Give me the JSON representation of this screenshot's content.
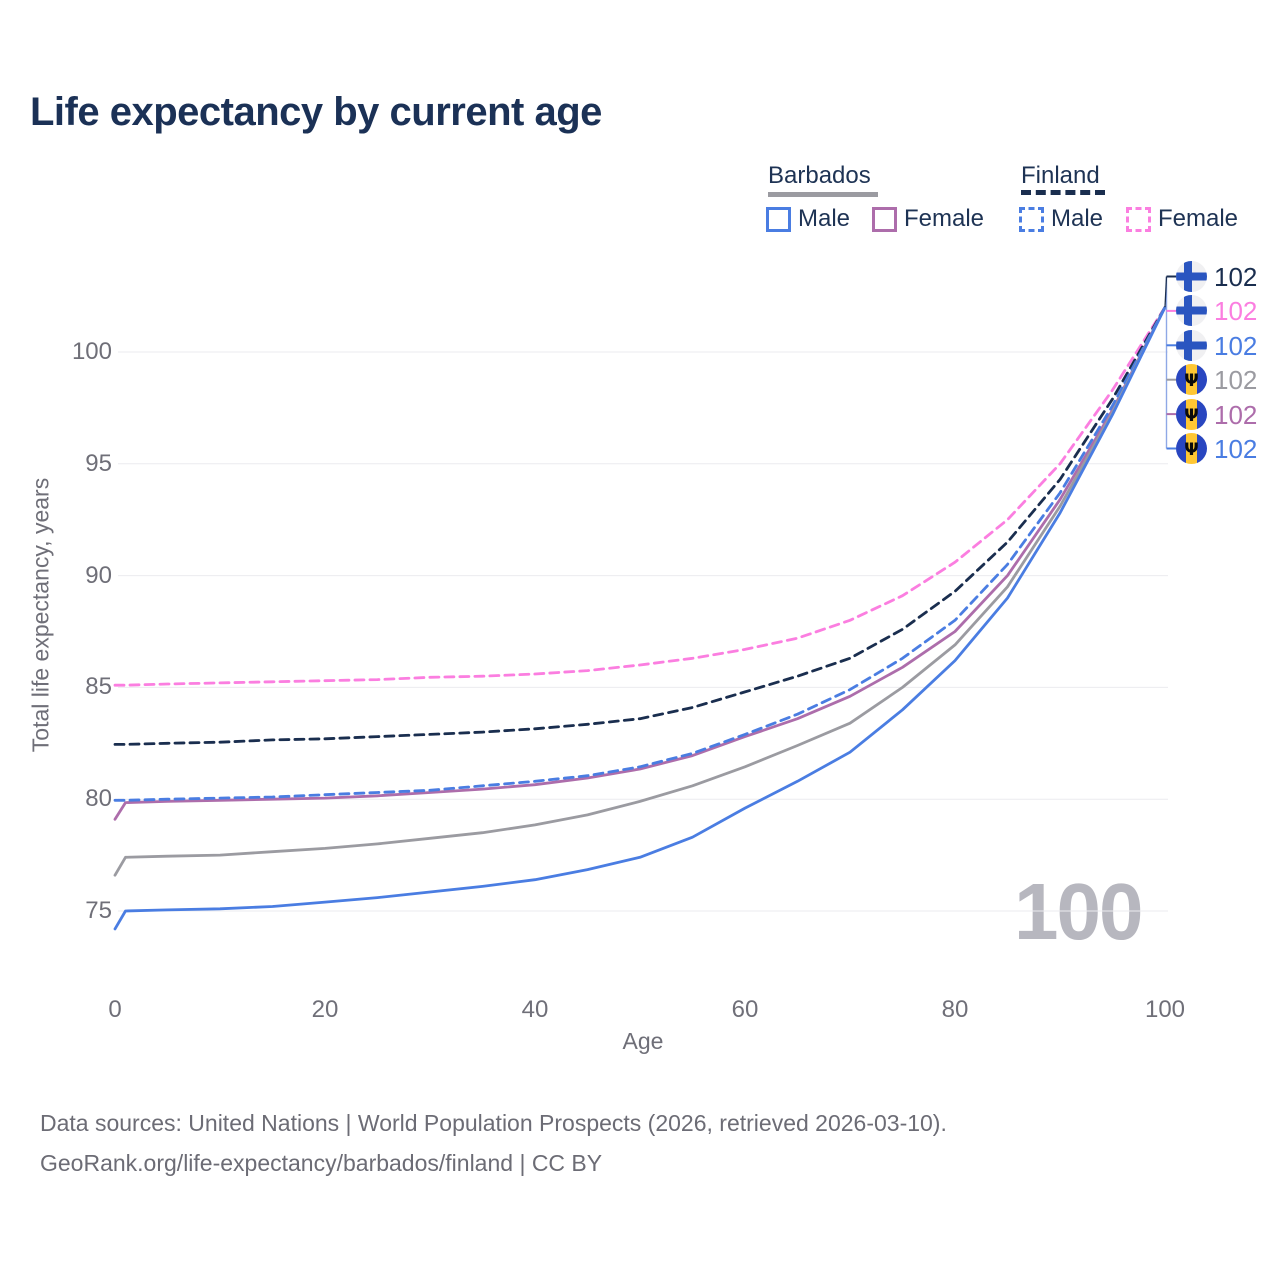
{
  "title": "Life expectancy by current age",
  "legend": {
    "groups": [
      {
        "label": "Barbados",
        "underline_style": "solid",
        "underline_color": "#9b9ba1",
        "items": [
          {
            "label": "Male",
            "color": "#4a7de2",
            "dash": false
          },
          {
            "label": "Female",
            "color": "#ad6dab",
            "dash": false
          }
        ]
      },
      {
        "label": "Finland",
        "underline_style": "dashed",
        "underline_color": "#1a2e4f",
        "items": [
          {
            "label": "Male",
            "color": "#4a7de2",
            "dash": true
          },
          {
            "label": "Female",
            "color": "#fb7ee0",
            "dash": true
          }
        ]
      }
    ]
  },
  "chart_data": {
    "type": "line",
    "title": "Life expectancy by current age",
    "xlabel": "Age",
    "ylabel": "Total life expectancy, years",
    "xlim": [
      0,
      100
    ],
    "ylim": [
      73.5,
      102.5
    ],
    "xticks": [
      0,
      20,
      40,
      60,
      80,
      100
    ],
    "yticks": [
      75,
      80,
      85,
      90,
      95,
      100
    ],
    "grid": "horizontal-only",
    "x": [
      0,
      1,
      5,
      10,
      15,
      20,
      25,
      30,
      35,
      40,
      45,
      50,
      55,
      60,
      65,
      70,
      75,
      80,
      85,
      90,
      95,
      100
    ],
    "series": [
      {
        "name": "Finland Female",
        "country": "Finland",
        "sex": "Female",
        "color": "#fb7ee0",
        "dash": true,
        "values": [
          85.1,
          85.1,
          85.15,
          85.2,
          85.25,
          85.3,
          85.35,
          85.45,
          85.5,
          85.6,
          85.75,
          86.0,
          86.3,
          86.7,
          87.2,
          88.0,
          89.1,
          90.6,
          92.5,
          95.0,
          98.3,
          102
        ]
      },
      {
        "name": "Finland Both sexes",
        "country": "Finland",
        "sex": "Both",
        "color": "#1a2e4f",
        "dash": true,
        "values": [
          82.45,
          82.45,
          82.5,
          82.55,
          82.65,
          82.7,
          82.8,
          82.9,
          83.0,
          83.15,
          83.35,
          83.6,
          84.1,
          84.8,
          85.5,
          86.3,
          87.6,
          89.3,
          91.5,
          94.3,
          97.9,
          102
        ]
      },
      {
        "name": "Barbados Female",
        "country": "Barbados",
        "sex": "Female",
        "color": "#ad6dab",
        "dash": false,
        "values": [
          79.1,
          79.85,
          79.9,
          79.95,
          80.0,
          80.05,
          80.15,
          80.3,
          80.45,
          80.65,
          80.95,
          81.35,
          81.95,
          82.8,
          83.6,
          84.6,
          85.9,
          87.5,
          90.0,
          93.4,
          97.4,
          102
        ]
      },
      {
        "name": "Finland Male",
        "country": "Finland",
        "sex": "Male",
        "color": "#4a7de2",
        "dash": true,
        "values": [
          79.95,
          79.95,
          80.0,
          80.05,
          80.1,
          80.2,
          80.3,
          80.4,
          80.6,
          80.8,
          81.05,
          81.45,
          82.05,
          82.9,
          83.8,
          84.9,
          86.3,
          88.0,
          90.5,
          93.7,
          97.6,
          102
        ]
      },
      {
        "name": "Barbados Both sexes",
        "country": "Barbados",
        "sex": "Both",
        "color": "#9b9ba1",
        "dash": false,
        "values": [
          76.6,
          77.4,
          77.45,
          77.5,
          77.65,
          77.8,
          78.0,
          78.25,
          78.5,
          78.85,
          79.3,
          79.9,
          80.6,
          81.45,
          82.4,
          83.4,
          85.0,
          86.9,
          89.5,
          93.1,
          97.3,
          102
        ]
      },
      {
        "name": "Barbados Male",
        "country": "Barbados",
        "sex": "Male",
        "color": "#4a7de2",
        "dash": false,
        "values": [
          74.2,
          75.0,
          75.05,
          75.1,
          75.2,
          75.4,
          75.6,
          75.85,
          76.1,
          76.4,
          76.85,
          77.4,
          78.3,
          79.6,
          80.8,
          82.1,
          84.0,
          86.2,
          89.0,
          92.8,
          97.2,
          102
        ]
      }
    ]
  },
  "end_labels": [
    {
      "country": "Finland",
      "value": "102",
      "color": "#1a2e4f"
    },
    {
      "country": "Finland",
      "value": "102",
      "color": "#fb7ee0"
    },
    {
      "country": "Finland",
      "value": "102",
      "color": "#4a7de2"
    },
    {
      "country": "Barbados",
      "value": "102",
      "color": "#9b9ba1"
    },
    {
      "country": "Barbados",
      "value": "102",
      "color": "#ad6dab"
    },
    {
      "country": "Barbados",
      "value": "102",
      "color": "#4a7de2"
    }
  ],
  "watermark": "100",
  "footer": {
    "line1": "Data sources: United Nations | World Population Prospects (2026, retrieved 2026-03-10).",
    "line2": "GeoRank.org/life-expectancy/barbados/finland | CC BY"
  },
  "colors": {
    "title_text": "#1b3156",
    "legend_text": "#1e3354",
    "axis_text": "#6f6f78",
    "gridline": "#ebebef",
    "watermark": "#b7b7bf",
    "footer_text": "#6c6c75",
    "finland_flag_blue": "#2a55c0",
    "barbados_flag_blue": "#2946c0",
    "barbados_flag_yellow": "#ffc733"
  }
}
